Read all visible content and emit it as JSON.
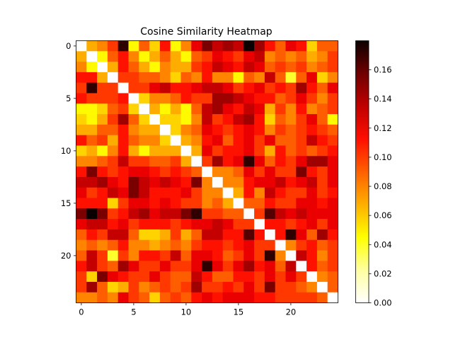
{
  "chart_data": {
    "type": "heatmap",
    "title": "Cosine Similarity Heatmap",
    "xlabel": "",
    "ylabel": "",
    "n": 25,
    "xticks": [
      0,
      5,
      10,
      15,
      20
    ],
    "yticks": [
      0,
      5,
      10,
      15,
      20
    ],
    "colormap": "hot_r",
    "vmin": 0.0,
    "vmax": 0.18,
    "colorbar_ticks": [
      "0.00",
      "0.02",
      "0.04",
      "0.06",
      "0.08",
      "0.10",
      "0.12",
      "0.14",
      "0.16"
    ],
    "colorbar_tick_values": [
      0.0,
      0.02,
      0.04,
      0.06,
      0.08,
      0.1,
      0.12,
      0.14,
      0.16
    ],
    "matrix": [
      [
        0.0,
        0.07,
        0.08,
        0.1,
        0.17,
        0.05,
        0.09,
        0.06,
        0.11,
        0.05,
        0.08,
        0.12,
        0.15,
        0.13,
        0.14,
        0.13,
        0.18,
        0.14,
        0.11,
        0.09,
        0.12,
        0.11,
        0.06,
        0.09,
        0.09
      ],
      [
        0.07,
        0.0,
        0.05,
        0.09,
        0.11,
        0.08,
        0.05,
        0.07,
        0.09,
        0.07,
        0.05,
        0.09,
        0.1,
        0.12,
        0.11,
        0.1,
        0.12,
        0.13,
        0.08,
        0.09,
        0.08,
        0.09,
        0.07,
        0.08,
        0.1
      ],
      [
        0.08,
        0.05,
        0.0,
        0.07,
        0.11,
        0.09,
        0.07,
        0.05,
        0.08,
        0.07,
        0.07,
        0.1,
        0.11,
        0.13,
        0.12,
        0.11,
        0.13,
        0.12,
        0.09,
        0.1,
        0.09,
        0.1,
        0.08,
        0.09,
        0.1
      ],
      [
        0.11,
        0.11,
        0.07,
        0.0,
        0.1,
        0.1,
        0.09,
        0.09,
        0.08,
        0.06,
        0.09,
        0.08,
        0.11,
        0.08,
        0.08,
        0.05,
        0.09,
        0.08,
        0.13,
        0.09,
        0.04,
        0.09,
        0.12,
        0.06,
        0.08
      ],
      [
        0.1,
        0.17,
        0.1,
        0.1,
        0.0,
        0.1,
        0.1,
        0.12,
        0.13,
        0.11,
        0.11,
        0.12,
        0.13,
        0.13,
        0.12,
        0.1,
        0.11,
        0.12,
        0.1,
        0.11,
        0.1,
        0.14,
        0.11,
        0.09,
        0.12
      ],
      [
        0.11,
        0.1,
        0.1,
        0.1,
        0.11,
        0.0,
        0.06,
        0.08,
        0.08,
        0.09,
        0.11,
        0.1,
        0.1,
        0.14,
        0.14,
        0.13,
        0.12,
        0.11,
        0.11,
        0.09,
        0.1,
        0.12,
        0.1,
        0.08,
        0.1
      ],
      [
        0.05,
        0.05,
        0.06,
        0.09,
        0.1,
        0.06,
        0.0,
        0.07,
        0.05,
        0.07,
        0.05,
        0.09,
        0.13,
        0.14,
        0.12,
        0.11,
        0.13,
        0.12,
        0.07,
        0.1,
        0.08,
        0.11,
        0.08,
        0.09,
        0.1
      ],
      [
        0.06,
        0.05,
        0.07,
        0.1,
        0.14,
        0.09,
        0.06,
        0.0,
        0.06,
        0.06,
        0.05,
        0.08,
        0.13,
        0.1,
        0.11,
        0.13,
        0.14,
        0.11,
        0.06,
        0.09,
        0.08,
        0.1,
        0.12,
        0.09,
        0.05
      ],
      [
        0.07,
        0.07,
        0.09,
        0.09,
        0.11,
        0.08,
        0.07,
        0.07,
        0.0,
        0.06,
        0.08,
        0.09,
        0.12,
        0.11,
        0.1,
        0.11,
        0.12,
        0.11,
        0.08,
        0.1,
        0.09,
        0.1,
        0.11,
        0.1,
        0.09
      ],
      [
        0.11,
        0.09,
        0.1,
        0.07,
        0.11,
        0.09,
        0.08,
        0.08,
        0.06,
        0.0,
        0.07,
        0.08,
        0.11,
        0.12,
        0.09,
        0.11,
        0.12,
        0.1,
        0.12,
        0.09,
        0.09,
        0.1,
        0.13,
        0.11,
        0.1
      ],
      [
        0.06,
        0.07,
        0.05,
        0.08,
        0.11,
        0.07,
        0.05,
        0.07,
        0.07,
        0.07,
        0.0,
        0.07,
        0.12,
        0.1,
        0.11,
        0.11,
        0.12,
        0.1,
        0.07,
        0.11,
        0.09,
        0.1,
        0.09,
        0.1,
        0.11
      ],
      [
        0.08,
        0.08,
        0.09,
        0.1,
        0.13,
        0.1,
        0.1,
        0.09,
        0.09,
        0.1,
        0.07,
        0.0,
        0.1,
        0.14,
        0.11,
        0.12,
        0.17,
        0.12,
        0.09,
        0.11,
        0.1,
        0.12,
        0.14,
        0.14,
        0.12
      ],
      [
        0.11,
        0.15,
        0.11,
        0.1,
        0.11,
        0.12,
        0.12,
        0.11,
        0.1,
        0.11,
        0.1,
        0.09,
        0.0,
        0.08,
        0.08,
        0.09,
        0.12,
        0.1,
        0.12,
        0.1,
        0.1,
        0.15,
        0.11,
        0.1,
        0.12
      ],
      [
        0.13,
        0.13,
        0.14,
        0.12,
        0.11,
        0.15,
        0.13,
        0.12,
        0.13,
        0.12,
        0.11,
        0.15,
        0.08,
        0.0,
        0.08,
        0.08,
        0.11,
        0.12,
        0.12,
        0.13,
        0.11,
        0.12,
        0.13,
        0.1,
        0.12
      ],
      [
        0.12,
        0.1,
        0.11,
        0.13,
        0.12,
        0.15,
        0.13,
        0.11,
        0.11,
        0.11,
        0.12,
        0.1,
        0.08,
        0.08,
        0.0,
        0.07,
        0.11,
        0.08,
        0.13,
        0.11,
        0.1,
        0.1,
        0.12,
        0.1,
        0.11
      ],
      [
        0.11,
        0.11,
        0.11,
        0.06,
        0.1,
        0.12,
        0.12,
        0.11,
        0.12,
        0.11,
        0.1,
        0.1,
        0.08,
        0.09,
        0.07,
        0.0,
        0.09,
        0.09,
        0.11,
        0.1,
        0.1,
        0.12,
        0.12,
        0.11,
        0.12
      ],
      [
        0.15,
        0.18,
        0.15,
        0.1,
        0.11,
        0.13,
        0.14,
        0.12,
        0.13,
        0.13,
        0.15,
        0.17,
        0.1,
        0.1,
        0.09,
        0.09,
        0.0,
        0.1,
        0.16,
        0.13,
        0.12,
        0.13,
        0.12,
        0.12,
        0.12
      ],
      [
        0.12,
        0.13,
        0.13,
        0.11,
        0.12,
        0.1,
        0.11,
        0.11,
        0.11,
        0.1,
        0.11,
        0.12,
        0.12,
        0.13,
        0.12,
        0.1,
        0.1,
        0.0,
        0.11,
        0.11,
        0.1,
        0.11,
        0.12,
        0.1,
        0.12
      ],
      [
        0.09,
        0.11,
        0.1,
        0.13,
        0.13,
        0.09,
        0.06,
        0.06,
        0.07,
        0.1,
        0.07,
        0.09,
        0.13,
        0.13,
        0.11,
        0.11,
        0.16,
        0.11,
        0.0,
        0.11,
        0.17,
        0.12,
        0.09,
        0.14,
        0.11
      ],
      [
        0.08,
        0.09,
        0.08,
        0.09,
        0.11,
        0.08,
        0.08,
        0.07,
        0.08,
        0.09,
        0.08,
        0.1,
        0.11,
        0.11,
        0.1,
        0.11,
        0.12,
        0.1,
        0.1,
        0.0,
        0.08,
        0.1,
        0.11,
        0.09,
        0.1
      ],
      [
        0.09,
        0.13,
        0.1,
        0.04,
        0.1,
        0.08,
        0.11,
        0.11,
        0.1,
        0.13,
        0.09,
        0.12,
        0.12,
        0.11,
        0.09,
        0.1,
        0.12,
        0.1,
        0.17,
        0.08,
        0.0,
        0.13,
        0.11,
        0.08,
        0.1
      ],
      [
        0.11,
        0.13,
        0.1,
        0.09,
        0.14,
        0.12,
        0.1,
        0.1,
        0.12,
        0.1,
        0.1,
        0.12,
        0.17,
        0.12,
        0.1,
        0.12,
        0.14,
        0.11,
        0.12,
        0.09,
        0.13,
        0.0,
        0.11,
        0.09,
        0.1
      ],
      [
        0.1,
        0.06,
        0.15,
        0.12,
        0.11,
        0.1,
        0.1,
        0.12,
        0.1,
        0.09,
        0.09,
        0.13,
        0.11,
        0.09,
        0.09,
        0.11,
        0.11,
        0.1,
        0.12,
        0.1,
        0.12,
        0.1,
        0.0,
        0.08,
        0.09
      ],
      [
        0.1,
        0.14,
        0.09,
        0.06,
        0.07,
        0.1,
        0.08,
        0.09,
        0.1,
        0.09,
        0.1,
        0.14,
        0.1,
        0.1,
        0.11,
        0.1,
        0.12,
        0.1,
        0.15,
        0.1,
        0.1,
        0.09,
        0.08,
        0.0,
        0.09
      ],
      [
        0.08,
        0.08,
        0.09,
        0.08,
        0.12,
        0.1,
        0.09,
        0.06,
        0.09,
        0.1,
        0.09,
        0.11,
        0.12,
        0.11,
        0.12,
        0.12,
        0.12,
        0.11,
        0.11,
        0.1,
        0.1,
        0.1,
        0.1,
        0.09,
        0.0
      ]
    ]
  }
}
